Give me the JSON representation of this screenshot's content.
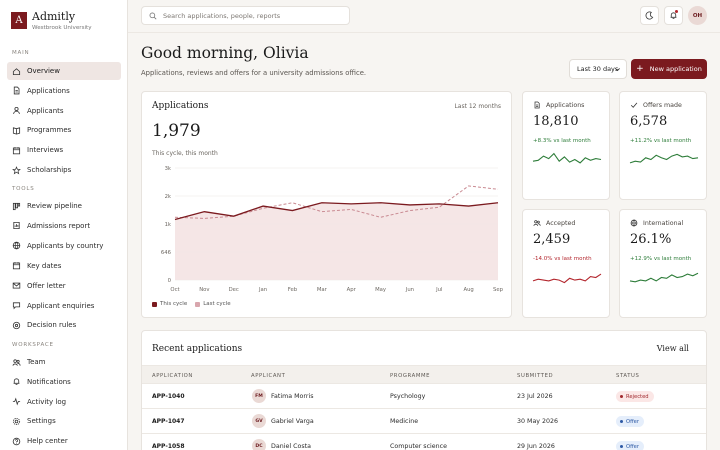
{
  "brand": {
    "logo_letter": "A",
    "name": "Admitly",
    "subtitle": "Westbrook University",
    "color": "#7b1a1f"
  },
  "sidebar": {
    "sections": [
      {
        "label": "MAIN",
        "items": [
          {
            "label": "Overview",
            "icon": "home-icon",
            "active": true
          },
          {
            "label": "Applications",
            "icon": "document-icon"
          },
          {
            "label": "Applicants",
            "icon": "user-icon"
          },
          {
            "label": "Programmes",
            "icon": "book-icon"
          },
          {
            "label": "Interviews",
            "icon": "calendar-icon"
          },
          {
            "label": "Scholarships",
            "icon": "star-icon"
          }
        ]
      },
      {
        "label": "TOOLS",
        "items": [
          {
            "label": "Review pipeline",
            "icon": "pipeline-icon"
          },
          {
            "label": "Admissions report",
            "icon": "report-icon"
          },
          {
            "label": "Applicants by country",
            "icon": "globe-icon"
          },
          {
            "label": "Key dates",
            "icon": "calendar-icon"
          },
          {
            "label": "Offer letter",
            "icon": "letter-icon"
          },
          {
            "label": "Applicant enquiries",
            "icon": "chat-icon"
          },
          {
            "label": "Decision rules",
            "icon": "rules-icon"
          }
        ]
      },
      {
        "label": "WORKSPACE",
        "items": [
          {
            "label": "Team",
            "icon": "team-icon"
          },
          {
            "label": "Notifications",
            "icon": "bell-icon"
          },
          {
            "label": "Activity log",
            "icon": "activity-icon"
          },
          {
            "label": "Settings",
            "icon": "gear-icon"
          },
          {
            "label": "Help center",
            "icon": "help-icon"
          }
        ]
      }
    ]
  },
  "topbar": {
    "search_placeholder": "Search applications, people, reports",
    "avatar_initials": "OH"
  },
  "header": {
    "greeting": "Good morning, Olivia",
    "subtitle": "Applications, reviews and offers for a university admissions office.",
    "period": "Last 30 days",
    "new_button": "New application"
  },
  "applications_card": {
    "title": "Applications",
    "range": "Last 12 months",
    "value": "1,979",
    "caption": "This cycle, this month",
    "legend_this": "This cycle",
    "legend_last": "Last cycle"
  },
  "chart_data": {
    "type": "area",
    "categories": [
      "Oct",
      "Nov",
      "Dec",
      "Jan",
      "Feb",
      "Mar",
      "Apr",
      "May",
      "Jun",
      "Jul",
      "Aug",
      "Sep"
    ],
    "y_ticks": [
      "0",
      "646",
      "1k",
      "2k",
      "3k"
    ],
    "series": [
      {
        "name": "This cycle",
        "style": "solid-area",
        "color": "#7b1a1f",
        "values": [
          0.54,
          0.61,
          0.57,
          0.66,
          0.62,
          0.69,
          0.68,
          0.69,
          0.67,
          0.68,
          0.66,
          0.69
        ]
      },
      {
        "name": "Last cycle",
        "style": "dashed",
        "color": "#c98a92",
        "values": [
          0.56,
          0.55,
          0.57,
          0.64,
          0.69,
          0.61,
          0.63,
          0.56,
          0.62,
          0.65,
          0.84,
          0.81
        ]
      }
    ],
    "grid": true,
    "legend": "bottom-left"
  },
  "stats": [
    {
      "label": "Applications",
      "icon": "document-icon",
      "value": "18,810",
      "delta": "+8.3% vs last month",
      "trend": "up",
      "spark": [
        0.4,
        0.45,
        0.7,
        0.55,
        0.85,
        0.4,
        0.65,
        0.35,
        0.5,
        0.3,
        0.6,
        0.45,
        0.55,
        0.5
      ]
    },
    {
      "label": "Offers made",
      "icon": "check-icon",
      "value": "6,578",
      "delta": "+11.2% vs last month",
      "trend": "up",
      "spark": [
        0.3,
        0.4,
        0.35,
        0.6,
        0.5,
        0.75,
        0.6,
        0.5,
        0.7,
        0.8,
        0.65,
        0.7,
        0.55,
        0.6
      ]
    },
    {
      "label": "Accepted",
      "icon": "users-icon",
      "value": "2,459",
      "delta": "-14.0% vs last month",
      "trend": "down",
      "spark": [
        0.3,
        0.4,
        0.35,
        0.3,
        0.4,
        0.35,
        0.2,
        0.45,
        0.35,
        0.4,
        0.3,
        0.55,
        0.5,
        0.7
      ]
    },
    {
      "label": "International",
      "icon": "globe-icon",
      "value": "26.1%",
      "delta": "+12.9% vs last month",
      "trend": "up",
      "spark": [
        0.3,
        0.25,
        0.35,
        0.3,
        0.45,
        0.3,
        0.5,
        0.45,
        0.65,
        0.5,
        0.55,
        0.7,
        0.6,
        0.75
      ]
    }
  ],
  "recent": {
    "title": "Recent applications",
    "view_all": "View all",
    "columns": [
      "APPLICATION",
      "APPLICANT",
      "PROGRAMME",
      "SUBMITTED",
      "STATUS"
    ],
    "rows": [
      {
        "id": "APP-1040",
        "initials": "FM",
        "name": "Fatima Morris",
        "programme": "Psychology",
        "submitted": "23 Jul 2026",
        "status": "Rejected",
        "status_type": "rejected"
      },
      {
        "id": "APP-1047",
        "initials": "GV",
        "name": "Gabriel Varga",
        "programme": "Medicine",
        "submitted": "30 May 2026",
        "status": "Offer",
        "status_type": "offer"
      },
      {
        "id": "APP-1058",
        "initials": "DC",
        "name": "Daniel Costa",
        "programme": "Computer science",
        "submitted": "29 Jun 2026",
        "status": "Offer",
        "status_type": "offer"
      }
    ]
  }
}
